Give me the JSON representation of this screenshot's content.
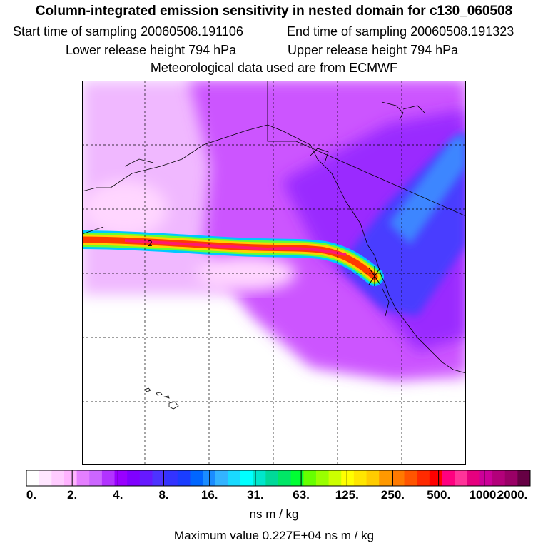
{
  "header": {
    "title": "Column-integrated emission sensitivity in nested domain for c130_060508",
    "start_label": "Start time of sampling 20060508.191106",
    "end_label": "End time of sampling 20060508.191323",
    "lower_label": "Lower release height  794 hPa",
    "upper_label": "Upper release height  794 hPa",
    "met_label": "Meteorological data used are from ECMWF"
  },
  "map": {
    "contour_label": "2",
    "release_marker": "cross-icon"
  },
  "legend": {
    "ticks": [
      "0.",
      "2.",
      "4.",
      "8.",
      "16.",
      "31.",
      "63.",
      "125.",
      "250.",
      "500.",
      "1000.",
      "2000."
    ],
    "colors": [
      "#ffffff",
      "#ffe6ff",
      "#ffccff",
      "#ffb3ff",
      "#e57fff",
      "#cc66ff",
      "#b233ff",
      "#9900ff",
      "#8000ff",
      "#6619ff",
      "#4d33ff",
      "#3333ff",
      "#1a3dff",
      "#0066ff",
      "#1a8cff",
      "#33b3ff",
      "#19d9ff",
      "#00ffff",
      "#00e6cc",
      "#00d999",
      "#00e666",
      "#00ff33",
      "#66ff00",
      "#99ff00",
      "#ccff00",
      "#ffff00",
      "#ffe600",
      "#ffcc00",
      "#ff9900",
      "#ff7a00",
      "#ff5500",
      "#ff2a00",
      "#ff0000",
      "#ff0080",
      "#ff3399",
      "#e6007f",
      "#cc0099",
      "#b3007a",
      "#990066",
      "#660044"
    ],
    "units": "ns m / kg",
    "max_value": "Maximum value  0.227E+04 ns m / kg"
  }
}
